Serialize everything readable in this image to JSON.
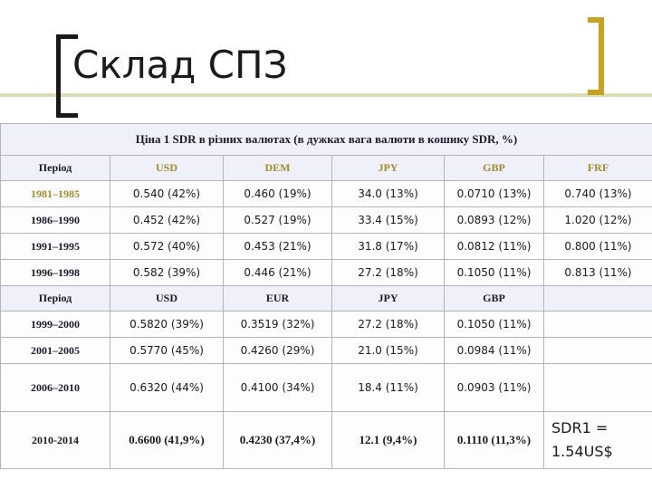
{
  "title": "Склад СПЗ",
  "table": {
    "caption": "Ціна 1 SDR в різних валютах (в дужках вага валюти в кошику SDR, %)",
    "header1": [
      "Період",
      "USD",
      "DEM",
      "JPY",
      "GBP",
      "FRF"
    ],
    "rows1": [
      [
        "1981–1985",
        "0.540 (42%)",
        "0.460 (19%)",
        "34.0 (13%)",
        "0.0710 (13%)",
        "0.740 (13%)"
      ],
      [
        "1986–1990",
        "0.452 (42%)",
        "0.527 (19%)",
        "33.4 (15%)",
        "0.0893 (12%)",
        "1.020 (12%)"
      ],
      [
        "1991–1995",
        "0.572 (40%)",
        "0.453 (21%)",
        "31.8 (17%)",
        "0.0812 (11%)",
        "0.800 (11%)"
      ],
      [
        "1996–1998",
        "0.582 (39%)",
        "0.446 (21%)",
        "27.2 (18%)",
        "0.1050 (11%)",
        "0.813 (11%)"
      ]
    ],
    "header2": [
      "Період",
      "USD",
      "EUR",
      "JPY",
      "GBP"
    ],
    "rows2": [
      [
        "1999–2000",
        "0.5820 (39%)",
        "0.3519 (32%)",
        "27.2 (18%)",
        "0.1050 (11%)"
      ],
      [
        "2001–2005",
        "0.5770 (45%)",
        "0.4260 (29%)",
        "21.0 (15%)",
        "0.0984 (11%)"
      ],
      [
        "2006–2010",
        "0.6320 (44%)",
        "0.4100 (34%)",
        "18.4 (11%)",
        "0.0903 (11%)"
      ],
      [
        "2010-2014",
        "0.6600 (41,9%)",
        "0.4230 (37,4%)",
        "12.1 (9,4%)",
        "0.1110 (11,3%)"
      ]
    ],
    "note_line1": "SDR1 =",
    "note_line2": "1.54US$"
  },
  "colors": {
    "accent_gold": "#c9a020",
    "header_text_gold": "#a08a2a",
    "bracket_dark": "#1a1a1a",
    "divider_line": "#dcdcb4"
  }
}
